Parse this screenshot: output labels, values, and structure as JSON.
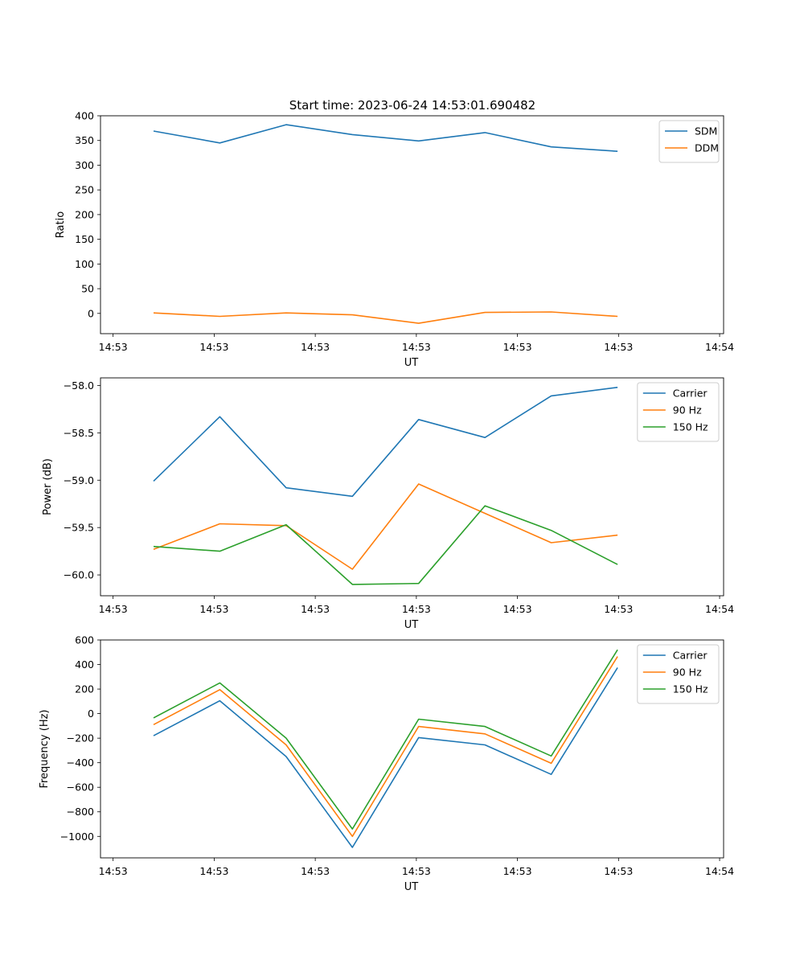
{
  "figure": {
    "title": "Start time: 2023-06-24 14:53:01.690482"
  },
  "colors": {
    "blue": "#1f77b4",
    "orange": "#ff7f0e",
    "green": "#2ca02c"
  },
  "chart_data": [
    {
      "type": "line",
      "title": "Start time: 2023-06-24 14:53:01.690482",
      "xlabel": "UT",
      "ylabel": "Ratio",
      "x_tick_labels": [
        "14:53",
        "14:53",
        "14:53",
        "14:53",
        "14:53",
        "14:53",
        "14:54"
      ],
      "y_ticks": [
        0,
        50,
        100,
        150,
        200,
        250,
        300,
        350,
        400
      ],
      "y_tick_labels": [
        "0",
        "50",
        "100",
        "150",
        "200",
        "250",
        "300",
        "350",
        "400"
      ],
      "ylim": [
        -41,
        400
      ],
      "legend_position": "top-right",
      "x": [
        1,
        2,
        3,
        4,
        5,
        6,
        7,
        8
      ],
      "series": [
        {
          "name": "SDM",
          "color": "#1f77b4",
          "values": [
            369,
            345,
            382,
            362,
            349,
            366,
            337,
            328
          ]
        },
        {
          "name": "DDM",
          "color": "#ff7f0e",
          "values": [
            1,
            -6,
            1,
            -3,
            -20,
            2,
            3,
            -6
          ]
        }
      ]
    },
    {
      "type": "line",
      "title": "",
      "xlabel": "UT",
      "ylabel": "Power (dB)",
      "x_tick_labels": [
        "14:53",
        "14:53",
        "14:53",
        "14:53",
        "14:53",
        "14:53",
        "14:54"
      ],
      "y_ticks": [
        -60.0,
        -59.5,
        -59.0,
        -58.5,
        -58.0
      ],
      "y_tick_labels": [
        "−60.0",
        "−59.5",
        "−59.0",
        "−58.5",
        "−58.0"
      ],
      "ylim": [
        -60.22,
        -57.92
      ],
      "legend_position": "top-right",
      "x": [
        1,
        2,
        3,
        4,
        5,
        6,
        7,
        8
      ],
      "series": [
        {
          "name": "Carrier",
          "color": "#1f77b4",
          "values": [
            -59.01,
            -58.33,
            -59.08,
            -59.17,
            -58.36,
            -58.55,
            -58.11,
            -58.02
          ]
        },
        {
          "name": "90 Hz",
          "color": "#ff7f0e",
          "values": [
            -59.73,
            -59.46,
            -59.48,
            -59.94,
            -59.04,
            -59.35,
            -59.66,
            -59.58
          ]
        },
        {
          "name": "150 Hz",
          "color": "#2ca02c",
          "values": [
            -59.7,
            -59.75,
            -59.47,
            -60.1,
            -60.09,
            -59.27,
            -59.53,
            -59.89
          ]
        }
      ]
    },
    {
      "type": "line",
      "title": "",
      "xlabel": "UT",
      "ylabel": "Frequency (Hz)",
      "x_tick_labels": [
        "14:53",
        "14:53",
        "14:53",
        "14:53",
        "14:53",
        "14:53",
        "14:54"
      ],
      "y_ticks": [
        -1000,
        -800,
        -600,
        -400,
        -200,
        0,
        200,
        400,
        600
      ],
      "y_tick_labels": [
        "−1000",
        "−800",
        "−600",
        "−400",
        "−200",
        "0",
        "200",
        "400",
        "600"
      ],
      "ylim": [
        -1175,
        600
      ],
      "legend_position": "top-right",
      "x": [
        1,
        2,
        3,
        4,
        5,
        6,
        7,
        8
      ],
      "series": [
        {
          "name": "Carrier",
          "color": "#1f77b4",
          "values": [
            -180,
            105,
            -350,
            -1090,
            -195,
            -255,
            -495,
            375
          ]
        },
        {
          "name": "90 Hz",
          "color": "#ff7f0e",
          "values": [
            -90,
            195,
            -255,
            -1000,
            -105,
            -165,
            -405,
            465
          ]
        },
        {
          "name": "150 Hz",
          "color": "#2ca02c",
          "values": [
            -35,
            250,
            -200,
            -940,
            -45,
            -105,
            -345,
            520
          ]
        }
      ]
    }
  ]
}
